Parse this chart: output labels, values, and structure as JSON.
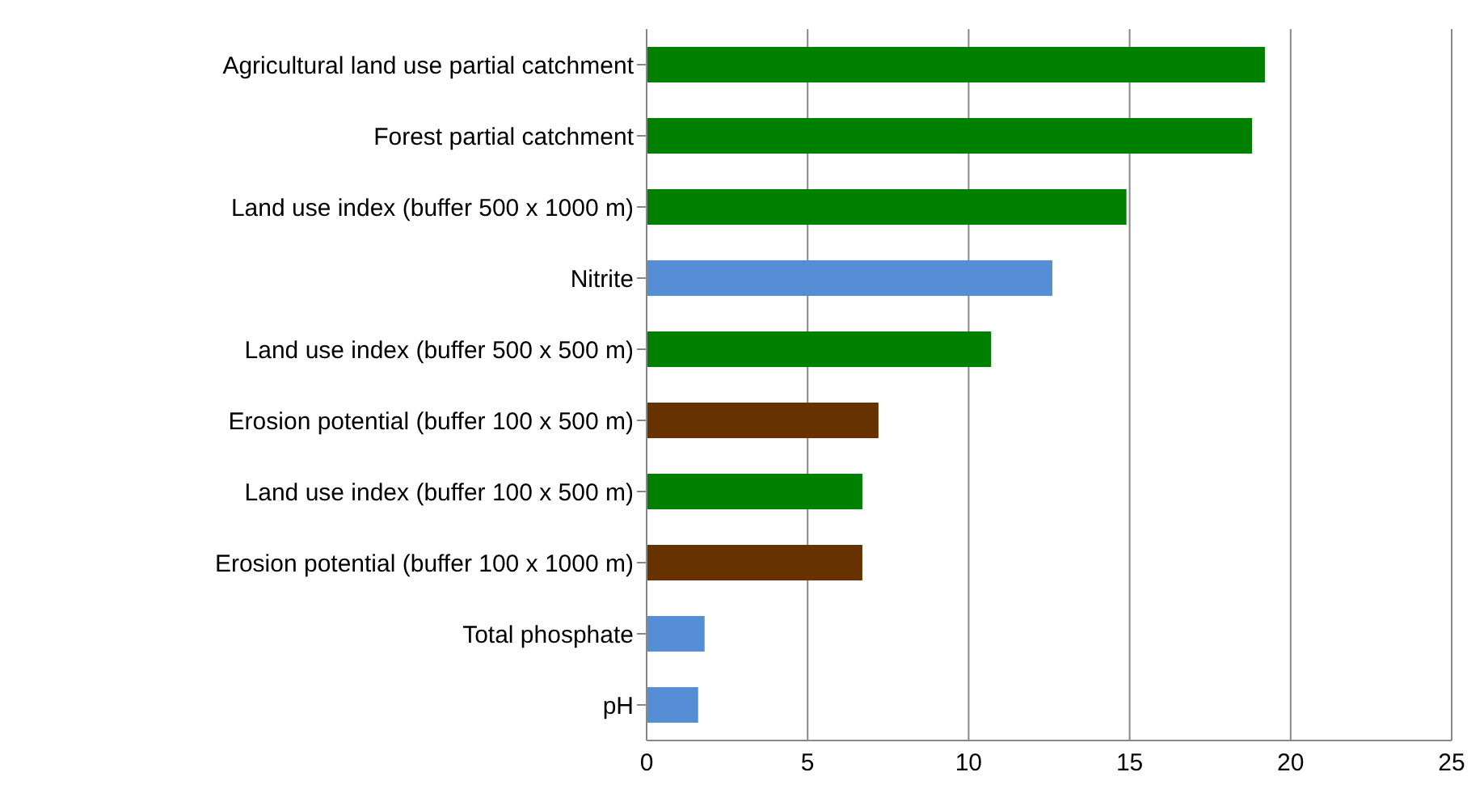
{
  "chart_data": {
    "type": "bar",
    "orientation": "horizontal",
    "categories": [
      "Agricultural land use partial catchment",
      "Forest partial catchment",
      "Land use index (buffer 500 x 1000 m)",
      "Nitrite",
      "Land use index (buffer 500 x 500 m)",
      "Erosion potential (buffer 100 x 500 m)",
      "Land use index (buffer 100 x 500 m)",
      "Erosion potential (buffer 100 x 1000 m)",
      "Total phosphate",
      "pH"
    ],
    "values": [
      19.2,
      18.8,
      14.9,
      12.6,
      10.7,
      7.2,
      6.7,
      6.7,
      1.8,
      1.6
    ],
    "colors": [
      "#008000",
      "#008000",
      "#008000",
      "#558ed5",
      "#008000",
      "#663300",
      "#008000",
      "#663300",
      "#558ed5",
      "#558ed5"
    ],
    "xlim": [
      0,
      25
    ],
    "xticks": [
      0,
      5,
      10,
      15,
      20,
      25
    ],
    "grid": "x"
  }
}
